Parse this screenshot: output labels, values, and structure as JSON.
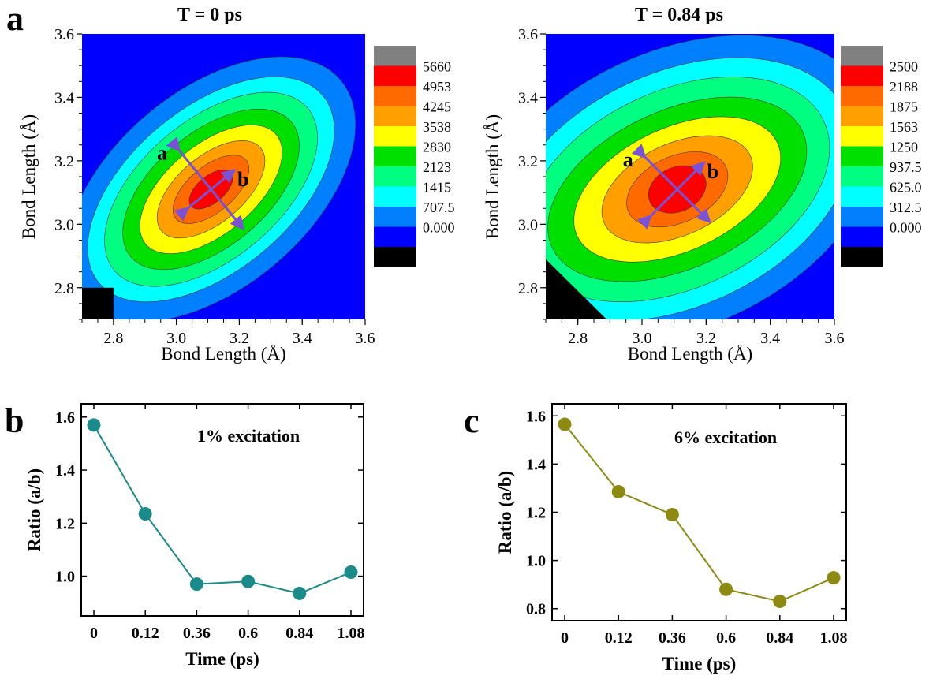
{
  "panel_labels": {
    "a": "a",
    "b": "b",
    "c": "c"
  },
  "colors": {
    "levels": [
      "#0000ff",
      "#0080ff",
      "#00ffff",
      "#00ff80",
      "#00e000",
      "#ffff00",
      "#ffa000",
      "#ff6a00",
      "#ff0000",
      "#808080"
    ],
    "below": "#000000",
    "arrow": "#7a52d6",
    "teal": "#1a8a8a",
    "olive": "#8c8a10"
  },
  "chart_data": [
    {
      "type": "heatmap",
      "title": "T = 0 ps",
      "xlabel": "Bond Length (Å)",
      "ylabel": "Bond Length (Å)",
      "xlim": [
        2.7,
        3.6
      ],
      "ylim": [
        2.7,
        3.6
      ],
      "xticks": [
        "2.8",
        "3.0",
        "3.2",
        "3.4",
        "3.6"
      ],
      "yticks": [
        "2.8",
        "3.0",
        "3.2",
        "3.4",
        "3.6"
      ],
      "colorbar_levels": [
        "0.000",
        "707.5",
        "1415",
        "2123",
        "2830",
        "3538",
        "4245",
        "4953",
        "5660"
      ],
      "peak": {
        "x": 3.11,
        "y": 3.11
      },
      "axis_a": "a",
      "axis_b": "b"
    },
    {
      "type": "heatmap",
      "title": "T = 0.84 ps",
      "xlabel": "Bond Length (Å)",
      "ylabel": "Bond Length (Å)",
      "xlim": [
        2.7,
        3.6
      ],
      "ylim": [
        2.7,
        3.6
      ],
      "xticks": [
        "2.8",
        "3.0",
        "3.2",
        "3.4",
        "3.6"
      ],
      "yticks": [
        "2.8",
        "3.0",
        "3.2",
        "3.4",
        "3.6"
      ],
      "colorbar_levels": [
        "0.000",
        "312.5",
        "625.0",
        "937.5",
        "1250",
        "1563",
        "1875",
        "2188",
        "2500"
      ],
      "peak": {
        "x": 3.11,
        "y": 3.11
      },
      "axis_a": "a",
      "axis_b": "b"
    },
    {
      "type": "line",
      "annotation": "1% excitation",
      "xlabel": "Time (ps)",
      "ylabel": "Ratio (a/b)",
      "categories": [
        "0",
        "0.12",
        "0.36",
        "0.6",
        "0.84",
        "1.08"
      ],
      "values": [
        1.57,
        1.235,
        0.97,
        0.98,
        0.935,
        1.015
      ],
      "ylim": [
        0.85,
        1.65
      ],
      "yticks": [
        "1.0",
        "1.2",
        "1.4",
        "1.6"
      ]
    },
    {
      "type": "line",
      "annotation": "6% excitation",
      "xlabel": "Time (ps)",
      "ylabel": "Ratio (a/b)",
      "categories": [
        "0",
        "0.12",
        "0.36",
        "0.6",
        "0.84",
        "1.08"
      ],
      "values": [
        1.565,
        1.285,
        1.19,
        0.88,
        0.83,
        0.928
      ],
      "ylim": [
        0.75,
        1.65
      ],
      "yticks": [
        "0.8",
        "1.0",
        "1.2",
        "1.4",
        "1.6"
      ]
    }
  ]
}
